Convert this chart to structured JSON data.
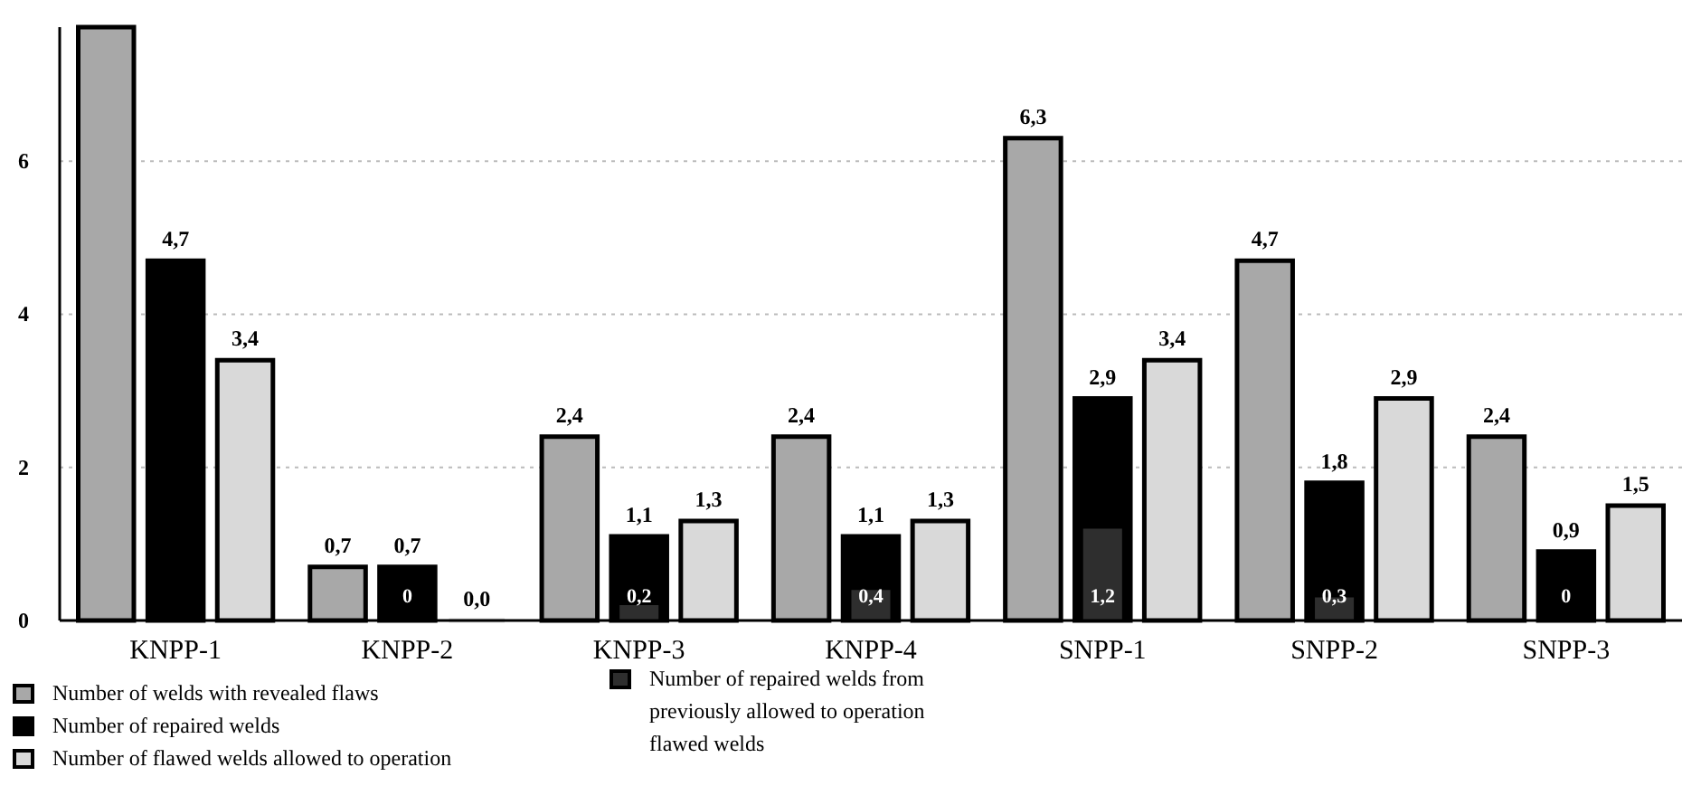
{
  "chart_data": {
    "type": "bar",
    "categories": [
      "KNPP-1",
      "KNPP-2",
      "KNPP-3",
      "KNPP-4",
      "SNPP-1",
      "SNPP-2",
      "SNPP-3"
    ],
    "series": [
      {
        "name": "Number of welds with revealed  flaws",
        "color": "#a8a8a8",
        "values": [
          7.75,
          0.7,
          2.4,
          2.4,
          6.3,
          4.7,
          2.4
        ],
        "value_labels": [
          null,
          "0,7",
          "2,4",
          "2,4",
          "6,3",
          "4,7",
          "2,4"
        ]
      },
      {
        "name": "Number of repaired welds",
        "color": "#000000",
        "values": [
          4.7,
          0.7,
          1.1,
          1.1,
          2.9,
          1.8,
          0.9
        ],
        "value_labels": [
          "4,7",
          "0,7",
          "1,1",
          "1,1",
          "2,9",
          "1,8",
          "0,9"
        ]
      },
      {
        "name": "Number of flawed welds allowed to operation",
        "color": "#d9d9d9",
        "values": [
          3.4,
          0,
          1.3,
          1.3,
          3.4,
          2.9,
          1.5
        ],
        "value_labels": [
          "3,4",
          "0,0",
          "1,3",
          "1,3",
          "3,4",
          "2,9",
          "1,5"
        ]
      },
      {
        "name": "Number of repaired welds from previously allowed to operation flawed welds",
        "color": "#2e2e2e",
        "values": [
          null,
          0,
          0.2,
          0.4,
          1.2,
          0.3,
          0
        ],
        "value_labels": [
          null,
          "0",
          "0,2",
          "0,4",
          "1,2",
          "0,3",
          "0"
        ]
      }
    ],
    "ylim": [
      0,
      7.75
    ],
    "yticks": [
      0,
      2,
      4,
      6
    ],
    "grid": "y",
    "legend": "bottom"
  }
}
